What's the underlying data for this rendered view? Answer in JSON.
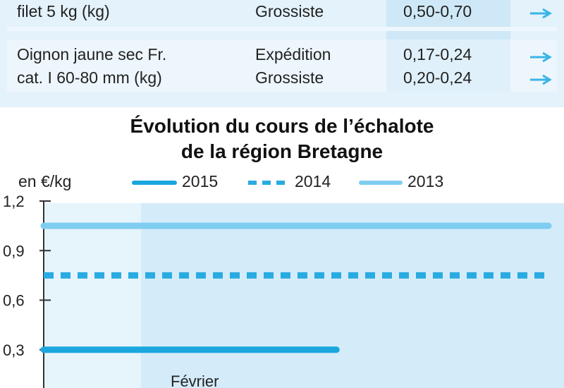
{
  "table": {
    "rows": [
      {
        "product_lines": [
          "filet 5 kg (kg)"
        ],
        "markets": [
          "Grossiste"
        ],
        "prices": [
          "0,50-0,70"
        ],
        "trends": [
          "right-arrow-icon"
        ]
      },
      {
        "product_lines": [
          "Oignon jaune sec Fr.",
          "cat. I 60-80 mm (kg)"
        ],
        "markets": [
          "Expédition",
          "Grossiste"
        ],
        "prices": [
          "0,17-0,24",
          "0,20-0,24"
        ],
        "trends": [
          "right-arrow-icon",
          "right-arrow-icon"
        ]
      }
    ]
  },
  "colors": {
    "table_bg": "#e3f2fb",
    "table_highlight": "#cfe8f7",
    "arrow": "#3ab4e6",
    "plot_bg": "#e6f4fc",
    "plot_bg_right": "#d4ecf9",
    "series_2015": "#1ba6de",
    "series_2014": "#29abe2",
    "series_2013": "#7fcdf0"
  },
  "chart_data": {
    "type": "line",
    "title_lines": [
      "Évolution du cours de l’échalote",
      "de la région Bretagne"
    ],
    "unit": "en €/kg",
    "ylim": [
      0,
      1.2
    ],
    "yticks": [
      {
        "value": 0.3,
        "label": "0,3"
      },
      {
        "value": 0.6,
        "label": "0,6"
      },
      {
        "value": 0.9,
        "label": "0,9"
      },
      {
        "value": 1.2,
        "label": "1,2"
      }
    ],
    "x_labels": [
      "Février"
    ],
    "legend_placement": "top",
    "series": [
      {
        "name": "2015",
        "style": "solid",
        "color": "#1ba6de",
        "value": 0.3,
        "x_extent": [
          0,
          0.58
        ]
      },
      {
        "name": "2014",
        "style": "dashed",
        "color": "#29abe2",
        "value": 0.75,
        "x_extent": [
          0,
          1
        ]
      },
      {
        "name": "2013",
        "style": "solid",
        "color": "#7fcdf0",
        "value": 1.05,
        "x_extent": [
          0,
          1
        ]
      }
    ]
  }
}
